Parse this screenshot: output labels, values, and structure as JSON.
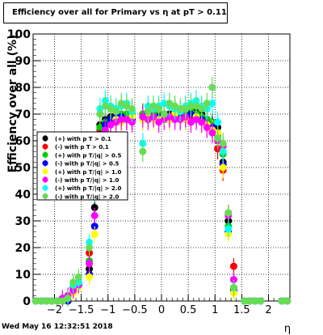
{
  "window": {
    "title": "Efficiency over all for Primary vs   η at pT > 0.11",
    "timestamp": "Wed May 16 12:32:51 2018"
  },
  "chart_data": {
    "type": "scatter",
    "title": "Efficiency over all for Primary vs   η at pT > 0.11",
    "xlabel": "η",
    "ylabel": "Efficiency over all (%)",
    "xlim": [
      -2.4,
      2.4
    ],
    "ylim": [
      0,
      100
    ],
    "x_ticks": [
      "−2",
      "−1.5",
      "−1",
      "−0.5",
      "0",
      "0.5",
      "1",
      "1.5",
      "2"
    ],
    "y_ticks": [
      "0",
      "10",
      "20",
      "30",
      "40",
      "50",
      "60",
      "70",
      "80",
      "90",
      "100"
    ],
    "grid": true,
    "legend_position": "left-middle",
    "series": [
      {
        "name": "(+) with p T > 0.1",
        "color": "#000000",
        "values": [
          0,
          0,
          0,
          0,
          0,
          0,
          0,
          4,
          6,
          12,
          35,
          66,
          68,
          69,
          70,
          70,
          69,
          68,
          70,
          71,
          70,
          69,
          70,
          70,
          71,
          70,
          69,
          70,
          71,
          70,
          68,
          66,
          65,
          52,
          30,
          5,
          0,
          0,
          0,
          0,
          0,
          0
        ]
      },
      {
        "name": "(-) with p T > 0.1",
        "color": "#ff0000",
        "values": [
          0,
          0,
          0,
          0,
          0,
          0,
          0,
          5,
          7,
          18,
          40,
          64,
          66,
          67,
          68,
          67,
          68,
          69,
          68,
          69,
          70,
          68,
          69,
          69,
          70,
          68,
          69,
          68,
          70,
          69,
          66,
          65,
          57,
          49,
          33,
          13,
          0,
          0,
          0,
          0,
          0,
          0
        ]
      },
      {
        "name": "(+) with p T/|q| > 0.5",
        "color": "#00cc00",
        "values": [
          0,
          0,
          0,
          0,
          0,
          1,
          2,
          5,
          7,
          15,
          45,
          65,
          67,
          68,
          69,
          70,
          70,
          71,
          70,
          70,
          71,
          70,
          70,
          69,
          71,
          70,
          70,
          71,
          70,
          69,
          68,
          67,
          62,
          55,
          28,
          4,
          0,
          0,
          0,
          0,
          0,
          0
        ]
      },
      {
        "name": "(-) with p T/|q| > 0.5",
        "color": "#0000ff",
        "values": [
          0,
          0,
          0,
          0,
          0,
          0,
          0,
          4,
          6,
          10,
          28,
          60,
          66,
          68,
          69,
          69,
          68,
          68,
          69,
          70,
          69,
          69,
          70,
          68,
          69,
          69,
          68,
          70,
          69,
          68,
          66,
          65,
          63,
          51,
          26,
          4,
          0,
          0,
          0,
          0,
          0,
          0
        ]
      },
      {
        "name": "(+) with p T/|q| > 1.0",
        "color": "#ffff00",
        "values": [
          0,
          0,
          0,
          0,
          0,
          0,
          1,
          3,
          5,
          9,
          25,
          55,
          63,
          66,
          68,
          67,
          68,
          69,
          68,
          69,
          68,
          68,
          69,
          68,
          70,
          68,
          68,
          67,
          69,
          67,
          66,
          64,
          63,
          50,
          25,
          3,
          0,
          0,
          0,
          0,
          0,
          0
        ]
      },
      {
        "name": "(-) with p T/|q| > 1.0",
        "color": "#ff00ff",
        "values": [
          0,
          0,
          0,
          0,
          0,
          1,
          2,
          4,
          6,
          14,
          32,
          57,
          64,
          66,
          67,
          68,
          68,
          67,
          69,
          68,
          69,
          67,
          68,
          69,
          68,
          68,
          69,
          67,
          68,
          67,
          65,
          63,
          60,
          58,
          32,
          8,
          0,
          0,
          0,
          0,
          0,
          0
        ]
      },
      {
        "name": "(+) with p T/|q| > 2.0",
        "color": "#00ffff",
        "values": [
          0,
          0,
          0,
          0,
          0,
          0,
          1,
          6,
          7,
          22,
          40,
          72,
          75,
          73,
          72,
          73,
          74,
          71,
          59,
          73,
          72,
          73,
          74,
          73,
          72,
          71,
          73,
          74,
          75,
          73,
          72,
          74,
          67,
          56,
          27,
          5,
          0,
          0,
          0,
          0,
          0,
          0
        ]
      },
      {
        "name": "(-) with p T/|q| > 2.0",
        "color": "#66dd55",
        "values": [
          0,
          0,
          0,
          0,
          0,
          0,
          1,
          7,
          9,
          20,
          42,
          70,
          73,
          72,
          71,
          74,
          73,
          72,
          56,
          71,
          73,
          72,
          70,
          74,
          73,
          72,
          72,
          73,
          73,
          72,
          74,
          80,
          61,
          59,
          33,
          5,
          0,
          0,
          0,
          0,
          0,
          0
        ]
      }
    ],
    "x": [
      -2.35,
      -2.25,
      -2.15,
      -2.05,
      -1.95,
      -1.85,
      -1.75,
      -1.65,
      -1.55,
      -1.35,
      -1.25,
      -1.15,
      -1.05,
      -0.95,
      -0.85,
      -0.75,
      -0.65,
      -0.55,
      -0.35,
      -0.25,
      -0.15,
      -0.05,
      0.05,
      0.15,
      0.25,
      0.35,
      0.45,
      0.55,
      0.65,
      0.75,
      0.85,
      0.95,
      1.05,
      1.15,
      1.25,
      1.35,
      1.55,
      1.65,
      1.75,
      1.85,
      2.25,
      2.35
    ]
  }
}
